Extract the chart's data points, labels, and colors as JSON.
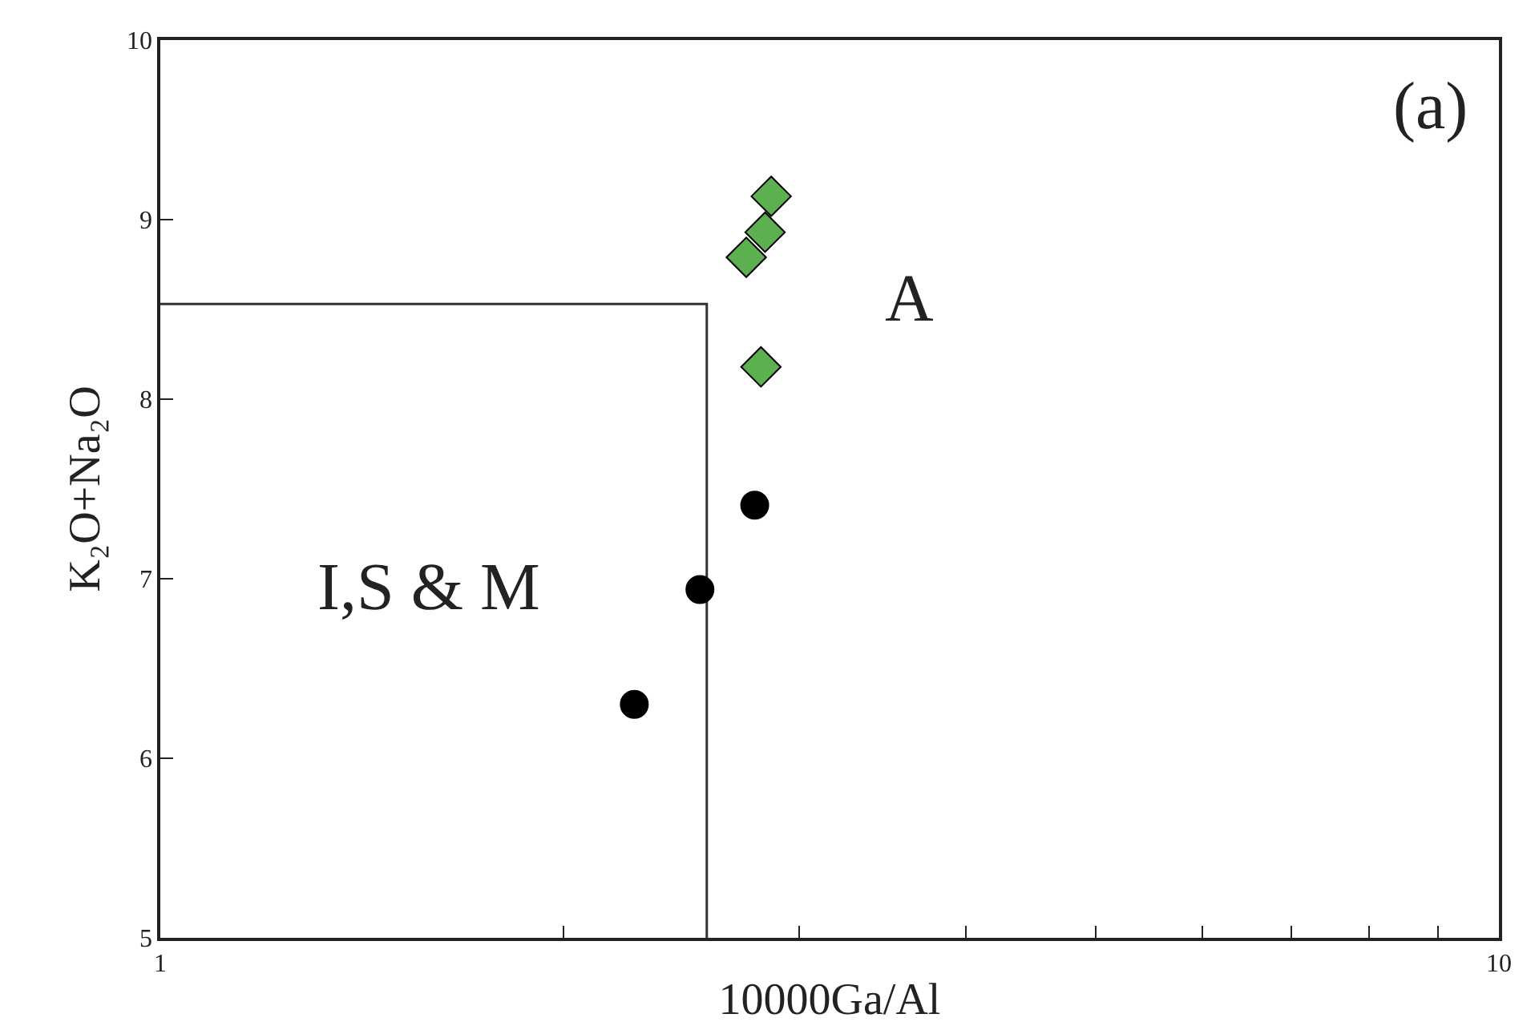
{
  "chart_data": {
    "type": "scatter",
    "xlabel": "10000Ga/Al",
    "ylabel": "K₂O+Na₂O",
    "log": "x",
    "xlim": [
      1,
      10
    ],
    "xticks": [
      1,
      {
        "value": 2,
        "label": null
      },
      {
        "value": 3,
        "label": null
      },
      {
        "value": 4,
        "label": null
      },
      {
        "value": 5,
        "label": null
      },
      {
        "value": 6,
        "label": null
      },
      {
        "value": 7,
        "label": null
      },
      {
        "value": 8,
        "label": null
      },
      {
        "value": 9,
        "label": null
      },
      10
    ],
    "ylim": [
      5,
      10
    ],
    "yticks": [
      5,
      6,
      7,
      8,
      9,
      10
    ],
    "series": [
      {
        "type": "line",
        "color": "#333333",
        "marker": "none",
        "line_style": "solid",
        "x": [
          1,
          2.56,
          2.56
        ],
        "values": [
          8.53,
          8.53,
          5
        ]
      },
      {
        "color": "#000000",
        "marker": "circle",
        "x": [
          2.26,
          2.53,
          2.78
        ],
        "values": [
          6.3,
          6.94,
          7.41
        ]
      },
      {
        "color": "#5cb04f",
        "marker": "diamond",
        "x": [
          2.86,
          2.83,
          2.74,
          2.81
        ],
        "values": [
          9.13,
          8.93,
          8.79,
          8.18
        ]
      }
    ],
    "annotations": [
      "(a)",
      "A",
      "I,S & M"
    ]
  }
}
